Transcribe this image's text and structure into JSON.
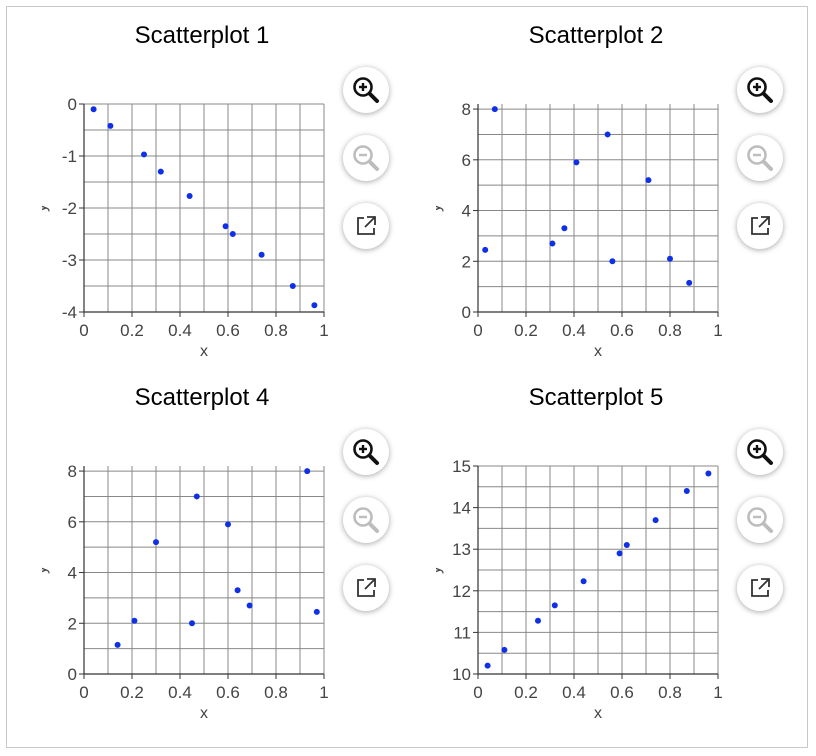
{
  "controls": {
    "zoom_in_icon": "magnifier-plus-icon",
    "zoom_out_icon": "magnifier-minus-icon",
    "popout_icon": "external-link-icon"
  },
  "colors": {
    "point": "#1030e8",
    "grid": "#888888",
    "axis": "#333333"
  },
  "chart_data": [
    {
      "type": "scatter",
      "title": "Scatterplot 1",
      "xlabel": "x",
      "ylabel": "y",
      "xlim": [
        0,
        1
      ],
      "ylim": [
        -4,
        0
      ],
      "xticks": [
        0,
        0.2,
        0.4,
        0.6,
        0.8,
        1
      ],
      "xtick_labels": [
        "0",
        "0.2",
        "0.4",
        "0.6",
        "0.8",
        "1"
      ],
      "yticks": [
        -4,
        -3,
        -2,
        -1,
        0
      ],
      "ytick_labels": [
        "-4",
        "-3",
        "-2",
        "-1",
        "0"
      ],
      "x": [
        0.04,
        0.11,
        0.25,
        0.32,
        0.44,
        0.59,
        0.62,
        0.74,
        0.87,
        0.96
      ],
      "y": [
        -0.1,
        -0.42,
        -0.97,
        -1.3,
        -1.77,
        -2.35,
        -2.5,
        -2.9,
        -3.5,
        -3.87
      ]
    },
    {
      "type": "scatter",
      "title": "Scatterplot 2",
      "xlabel": "x",
      "ylabel": "y",
      "xlim": [
        0,
        1
      ],
      "ylim": [
        0,
        8.2
      ],
      "xticks": [
        0,
        0.2,
        0.4,
        0.6,
        0.8,
        1
      ],
      "xtick_labels": [
        "0",
        "0.2",
        "0.4",
        "0.6",
        "0.8",
        "1"
      ],
      "yticks": [
        0,
        2,
        4,
        6,
        8
      ],
      "ytick_labels": [
        "0",
        "2",
        "4",
        "6",
        "8"
      ],
      "x": [
        0.03,
        0.07,
        0.31,
        0.36,
        0.41,
        0.54,
        0.56,
        0.71,
        0.8,
        0.88
      ],
      "y": [
        2.45,
        8.0,
        2.7,
        3.3,
        5.9,
        7.0,
        2.0,
        5.2,
        2.1,
        1.15
      ]
    },
    {
      "type": "scatter",
      "title": "Scatterplot 4",
      "xlabel": "x",
      "ylabel": "y",
      "xlim": [
        0,
        1
      ],
      "ylim": [
        0,
        8.2
      ],
      "xticks": [
        0,
        0.2,
        0.4,
        0.6,
        0.8,
        1
      ],
      "xtick_labels": [
        "0",
        "0.2",
        "0.4",
        "0.6",
        "0.8",
        "1"
      ],
      "yticks": [
        0,
        2,
        4,
        6,
        8
      ],
      "ytick_labels": [
        "0",
        "2",
        "4",
        "6",
        "8"
      ],
      "x": [
        0.14,
        0.21,
        0.3,
        0.45,
        0.47,
        0.6,
        0.64,
        0.69,
        0.93,
        0.97
      ],
      "y": [
        1.15,
        2.1,
        5.2,
        2.0,
        7.0,
        5.9,
        3.3,
        2.7,
        8.0,
        2.45
      ]
    },
    {
      "type": "scatter",
      "title": "Scatterplot 5",
      "xlabel": "x",
      "ylabel": "y",
      "xlim": [
        0,
        1
      ],
      "ylim": [
        10,
        15
      ],
      "xticks": [
        0,
        0.2,
        0.4,
        0.6,
        0.8,
        1
      ],
      "xtick_labels": [
        "0",
        "0.2",
        "0.4",
        "0.6",
        "0.8",
        "1"
      ],
      "yticks": [
        10,
        11,
        12,
        13,
        14,
        15
      ],
      "ytick_labels": [
        "10",
        "11",
        "12",
        "13",
        "14",
        "15"
      ],
      "x": [
        0.04,
        0.11,
        0.25,
        0.32,
        0.44,
        0.59,
        0.62,
        0.74,
        0.87,
        0.96
      ],
      "y": [
        10.2,
        10.58,
        11.28,
        11.65,
        12.23,
        12.9,
        13.1,
        13.7,
        14.4,
        14.82
      ]
    }
  ]
}
